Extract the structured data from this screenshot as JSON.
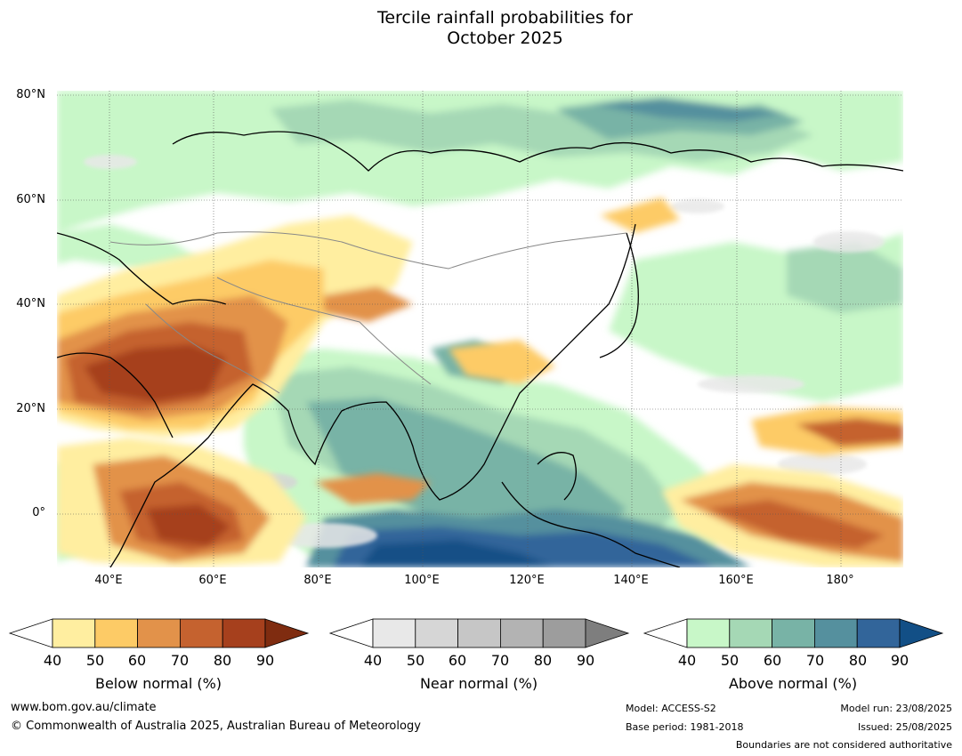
{
  "title_line1": "Tercile rainfall probabilities for",
  "title_line2": "October 2025",
  "map": {
    "lat_labels": [
      "80°N",
      "60°N",
      "40°N",
      "20°N",
      "0°"
    ],
    "lon_labels": [
      "40°E",
      "60°E",
      "80°E",
      "100°E",
      "120°E",
      "140°E",
      "160°E",
      "180°"
    ],
    "lon_range": [
      30,
      192
    ],
    "lat_range": [
      -10,
      80
    ]
  },
  "colorbars": [
    {
      "label": "Below normal (%)",
      "ticks": [
        "40",
        "50",
        "60",
        "70",
        "80",
        "90"
      ],
      "colors": [
        "#ffeea0",
        "#fdcb66",
        "#e2924a",
        "#c5622f",
        "#a6401d",
        "#7f2c10"
      ]
    },
    {
      "label": "Near normal (%)",
      "ticks": [
        "40",
        "50",
        "60",
        "70",
        "80",
        "90"
      ],
      "colors": [
        "#e8e8e8",
        "#d6d6d6",
        "#c6c6c6",
        "#b3b3b3",
        "#9d9d9d",
        "#7e7e7e"
      ]
    },
    {
      "label": "Above normal (%)",
      "ticks": [
        "40",
        "50",
        "60",
        "70",
        "80",
        "90"
      ],
      "colors": [
        "#c8f7c8",
        "#a5d8b5",
        "#78b3a6",
        "#55909e",
        "#32659a",
        "#124f86"
      ]
    }
  ],
  "footer": {
    "site": "www.bom.gov.au/climate",
    "copyright": "© Commonwealth of Australia 2025, Australian Bureau of Meteorology",
    "model": "Model: ACCESS-S2",
    "base_period": "Base period: 1981-2018",
    "model_run": "Model run: 23/08/2025",
    "issued": "Issued: 25/08/2025",
    "disclaimer": "Boundaries are not considered authoritative"
  }
}
